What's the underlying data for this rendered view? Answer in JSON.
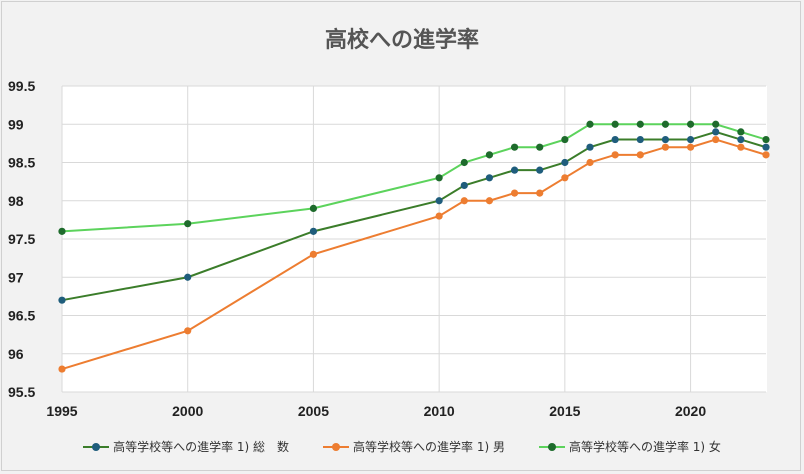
{
  "chart_data": {
    "type": "line",
    "title": "高校への進学率",
    "x": [
      1995,
      2000,
      2005,
      2010,
      2011,
      2012,
      2013,
      2014,
      2015,
      2016,
      2017,
      2018,
      2019,
      2020,
      2021,
      2022,
      2023
    ],
    "xlim": [
      1995,
      2023
    ],
    "ylim": [
      95.5,
      99.5
    ],
    "xticks": [
      1995,
      2000,
      2005,
      2010,
      2015,
      2020
    ],
    "yticks": [
      "95.5",
      "96",
      "96.5",
      "97",
      "97.5",
      "98",
      "98.5",
      "99",
      "99.5"
    ],
    "grid": true,
    "legend_position": "bottom",
    "series": [
      {
        "name": "高等学校等への進学率 1) 総　数",
        "line_color": "#3b7d2a",
        "marker_color": "#1f5d7c",
        "values": [
          96.7,
          97.0,
          97.6,
          98.0,
          98.2,
          98.3,
          98.4,
          98.4,
          98.5,
          98.7,
          98.8,
          98.8,
          98.8,
          98.8,
          98.9,
          98.8,
          98.7
        ]
      },
      {
        "name": "高等学校等への進学率 1) 男",
        "line_color": "#ed7d31",
        "marker_color": "#ed7d31",
        "values": [
          95.8,
          96.3,
          97.3,
          97.8,
          98.0,
          98.0,
          98.1,
          98.1,
          98.3,
          98.5,
          98.6,
          98.6,
          98.7,
          98.7,
          98.8,
          98.7,
          98.6
        ]
      },
      {
        "name": "高等学校等への進学率 1) 女",
        "line_color": "#5cd35c",
        "marker_color": "#1e6b2c",
        "values": [
          97.6,
          97.7,
          97.9,
          98.3,
          98.5,
          98.6,
          98.7,
          98.7,
          98.8,
          99.0,
          99.0,
          99.0,
          99.0,
          99.0,
          99.0,
          98.9,
          98.8
        ]
      }
    ]
  }
}
